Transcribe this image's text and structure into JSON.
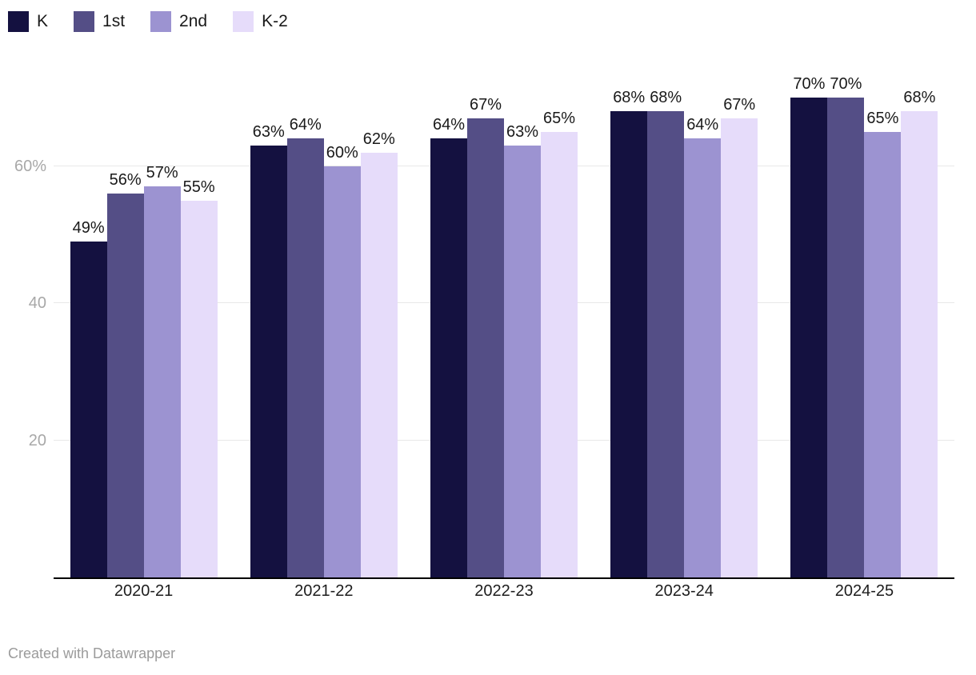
{
  "chart_data": {
    "type": "bar",
    "title": "",
    "categories": [
      "2020-21",
      "2021-22",
      "2022-23",
      "2023-24",
      "2024-25"
    ],
    "series": [
      {
        "name": "K",
        "color": "#141140",
        "values": [
          49,
          63,
          64,
          68,
          70
        ]
      },
      {
        "name": "1st",
        "color": "#544e86",
        "values": [
          56,
          64,
          67,
          68,
          70
        ]
      },
      {
        "name": "2nd",
        "color": "#9c93d1",
        "values": [
          57,
          60,
          63,
          64,
          65
        ]
      },
      {
        "name": "K-2",
        "color": "#e6dcfa",
        "values": [
          55,
          62,
          65,
          67,
          68
        ]
      }
    ],
    "value_suffix": "%",
    "ylim": [
      0,
      70
    ],
    "yticks": [
      {
        "value": 20,
        "label": "20"
      },
      {
        "value": 40,
        "label": "40"
      },
      {
        "value": 60,
        "label": "60%"
      }
    ],
    "grid": "horizontal",
    "legend_position": "top-left",
    "bar_value_labels": true
  },
  "legend": {
    "items": [
      "K",
      "1st",
      "2nd",
      "K-2"
    ]
  },
  "colors": {
    "axis_line": "#000000",
    "gridline": "#e8e8e8",
    "ytick_text": "#a8a8a8",
    "xtick_text": "#1d1d1d",
    "value_label_text": "#1a1a1a"
  },
  "footer": {
    "credit": "Created with Datawrapper"
  }
}
